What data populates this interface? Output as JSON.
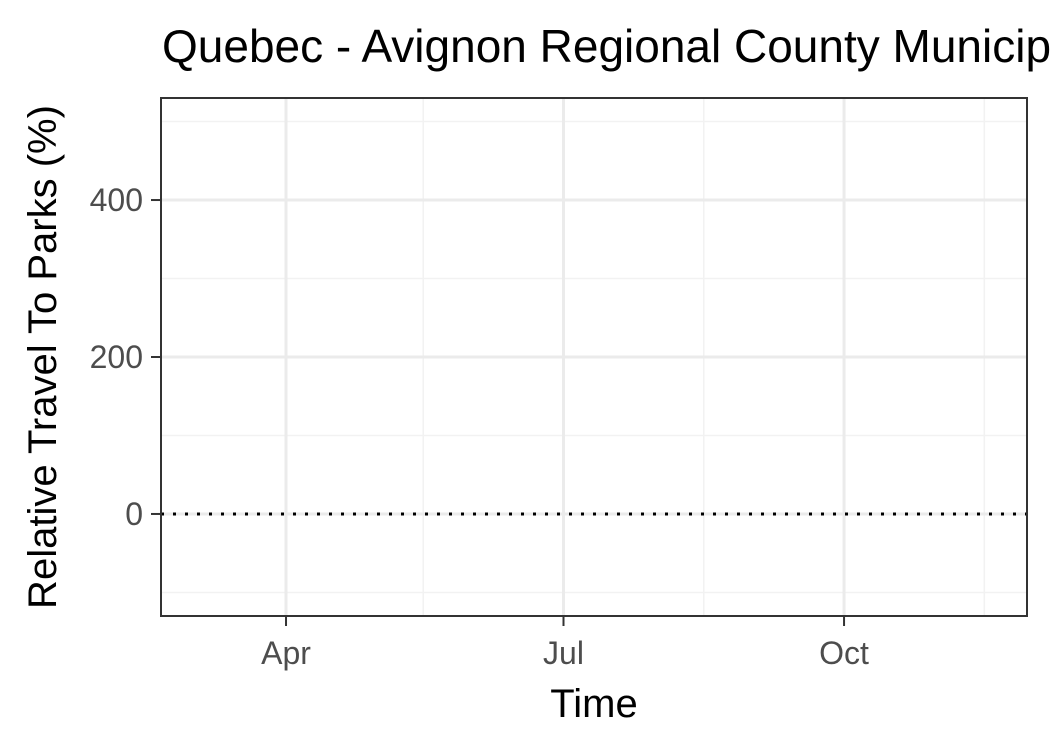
{
  "chart_data": {
    "type": "line",
    "title": "Quebec - Avignon Regional County Municipality",
    "xlabel": "Time",
    "ylabel": "Relative Travel To Parks (%)",
    "x_axis": {
      "type": "date",
      "range": [
        "2020-02-20",
        "2020-11-30"
      ],
      "major_ticks": [
        {
          "date": "2020-04-01",
          "label": "Apr"
        },
        {
          "date": "2020-07-01",
          "label": "Jul"
        },
        {
          "date": "2020-10-01",
          "label": "Oct"
        }
      ],
      "minor_gridlines": [
        "2020-05-16",
        "2020-08-16",
        "2020-11-16"
      ]
    },
    "y_axis": {
      "range": [
        -130,
        530
      ],
      "major_ticks": [
        {
          "value": 0,
          "label": "0"
        },
        {
          "value": 200,
          "label": "200"
        },
        {
          "value": 400,
          "label": "400"
        }
      ],
      "minor_gridlines": [
        -100,
        100,
        300,
        500
      ]
    },
    "reference_line": {
      "value": 0,
      "style": "dotted",
      "color": "#000000"
    },
    "series": [],
    "grid": true,
    "legend": "none",
    "colors": {
      "background": "#ffffff",
      "panel_border": "#333333",
      "grid_major": "#ebebeb",
      "grid_minor": "#f2f2f2",
      "tick_label": "#4d4d4d"
    }
  }
}
